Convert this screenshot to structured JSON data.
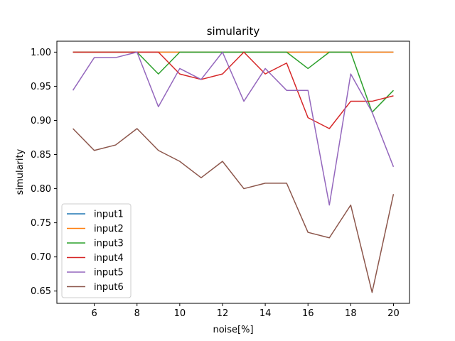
{
  "chart_data": {
    "type": "line",
    "title": "simularity",
    "xlabel": "noise[%]",
    "ylabel": "simularity",
    "xlim": [
      4.25,
      20.75
    ],
    "ylim": [
      0.632,
      1.016
    ],
    "xticks": [
      6,
      8,
      10,
      12,
      14,
      16,
      18,
      20
    ],
    "yticks": [
      0.65,
      0.7,
      0.75,
      0.8,
      0.85,
      0.9,
      0.95,
      1.0
    ],
    "ytick_labels": [
      "0.65",
      "0.70",
      "0.75",
      "0.80",
      "0.85",
      "0.90",
      "0.95",
      "1.00"
    ],
    "grid": false,
    "legend_position": "bottom-left",
    "x": [
      5,
      6,
      7,
      8,
      9,
      10,
      11,
      12,
      13,
      14,
      15,
      16,
      17,
      18,
      19,
      20
    ],
    "series": [
      {
        "name": "input1",
        "color": "#1f77b4",
        "values": [
          1,
          1,
          1,
          1,
          1,
          1,
          1,
          1,
          1,
          1,
          1,
          1,
          1,
          1,
          1,
          1
        ]
      },
      {
        "name": "input2",
        "color": "#ff7f0e",
        "values": [
          1,
          1,
          1,
          1,
          1,
          1,
          1,
          1,
          1,
          1,
          1,
          1,
          1,
          1,
          1,
          1
        ]
      },
      {
        "name": "input3",
        "color": "#2ca02c",
        "values": [
          1,
          1,
          1,
          1,
          0.968,
          1,
          1,
          1,
          1,
          1,
          1,
          0.976,
          1,
          1,
          0.912,
          0.944
        ]
      },
      {
        "name": "input4",
        "color": "#d62728",
        "values": [
          1,
          1,
          1,
          1,
          1,
          0.968,
          0.96,
          0.968,
          1,
          0.968,
          0.984,
          0.904,
          0.888,
          0.928,
          0.928,
          0.936
        ]
      },
      {
        "name": "input5",
        "color": "#9467bd",
        "values": [
          0.944,
          0.992,
          0.992,
          1,
          0.92,
          0.976,
          0.96,
          1,
          0.928,
          0.976,
          0.944,
          0.944,
          0.776,
          0.968,
          0.912,
          0.832
        ]
      },
      {
        "name": "input6",
        "color": "#8c564b",
        "values": [
          0.888,
          0.856,
          0.864,
          0.888,
          0.856,
          0.84,
          0.816,
          0.84,
          0.8,
          0.808,
          0.808,
          0.736,
          0.728,
          0.776,
          0.648,
          0.792
        ]
      }
    ]
  }
}
